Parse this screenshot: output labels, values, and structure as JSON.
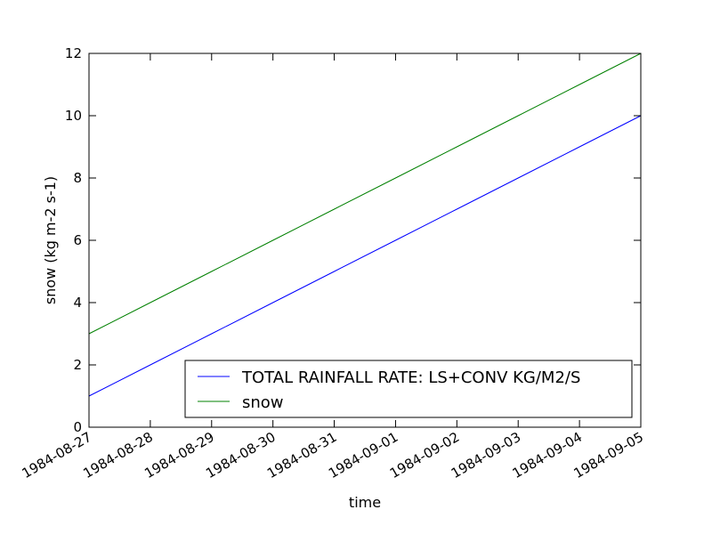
{
  "chart_data": {
    "type": "line",
    "xlabel": "time",
    "ylabel": "snow (kg m-2 s-1)",
    "x": [
      "1984-08-27",
      "1984-08-28",
      "1984-08-29",
      "1984-08-30",
      "1984-08-31",
      "1984-09-01",
      "1984-09-02",
      "1984-09-03",
      "1984-09-04",
      "1984-09-05"
    ],
    "x_ticks": [
      "1984-08-27",
      "1984-08-28",
      "1984-08-29",
      "1984-08-30",
      "1984-08-31",
      "1984-09-01",
      "1984-09-02",
      "1984-09-03",
      "1984-09-04",
      "1984-09-05"
    ],
    "y_ticks": [
      "0",
      "2",
      "4",
      "6",
      "8",
      "10",
      "12"
    ],
    "ylim": [
      0,
      12
    ],
    "grid": false,
    "legend_position": "lower-right",
    "series": [
      {
        "name": "TOTAL RAINFALL RATE: LS+CONV KG/M2/S",
        "color": "#0000ff",
        "values": [
          1,
          2,
          3,
          4,
          5,
          6,
          7,
          8,
          9,
          10
        ]
      },
      {
        "name": "snow",
        "color": "#008000",
        "values": [
          3,
          4,
          5,
          6,
          7,
          8,
          9,
          10,
          11,
          12
        ]
      }
    ]
  }
}
